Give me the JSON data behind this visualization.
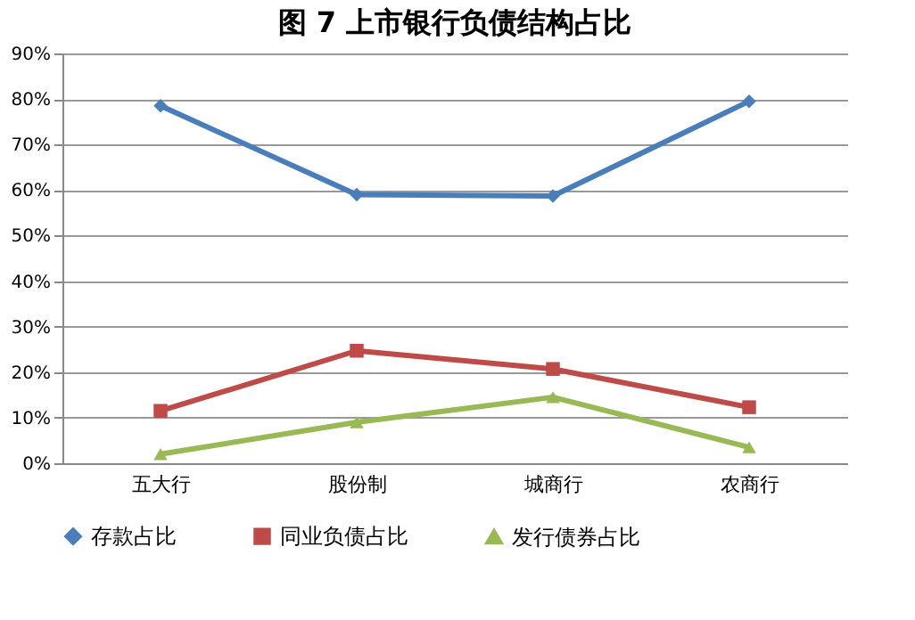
{
  "chart_data": {
    "type": "line",
    "title": "图 7  上市银行负债结构占比",
    "categories": [
      "五大行",
      "股份制",
      "城商行",
      "农商行"
    ],
    "series": [
      {
        "name": "存款占比",
        "color": "#4a7ebb",
        "marker": "diamond",
        "values": [
          78.5,
          59,
          58.7,
          79.5
        ]
      },
      {
        "name": "同业负债占比",
        "color": "#be4b48",
        "marker": "square",
        "values": [
          11.5,
          24.7,
          20.7,
          12.3
        ]
      },
      {
        "name": "发行债券占比",
        "color": "#98b954",
        "marker": "triangle",
        "values": [
          2,
          9,
          14.5,
          3.5
        ]
      }
    ],
    "ylim": [
      0,
      90
    ],
    "yticks": [
      {
        "value": 0,
        "label": "0%"
      },
      {
        "value": 10,
        "label": "10%"
      },
      {
        "value": 20,
        "label": "20%"
      },
      {
        "value": 30,
        "label": "30%"
      },
      {
        "value": 40,
        "label": "40%"
      },
      {
        "value": 50,
        "label": "50%"
      },
      {
        "value": 60,
        "label": "60%"
      },
      {
        "value": 70,
        "label": "70%"
      },
      {
        "value": 80,
        "label": "80%"
      },
      {
        "value": 90,
        "label": "90%"
      }
    ],
    "grid": "y",
    "legend": "bottom",
    "line_style": "solid"
  }
}
